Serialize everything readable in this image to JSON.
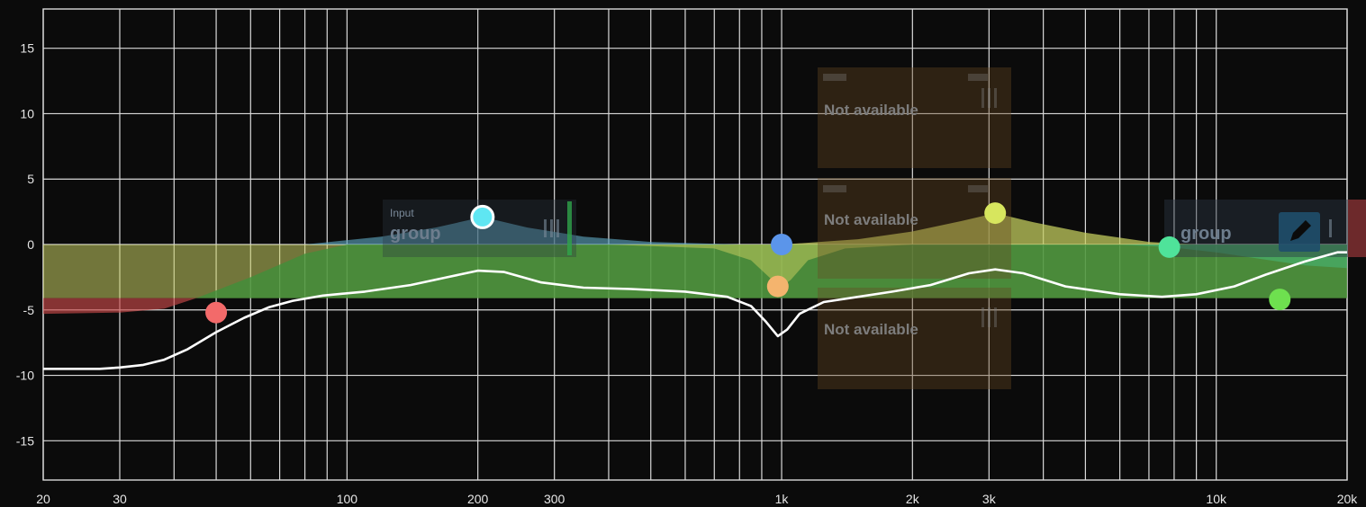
{
  "axis": {
    "y_ticks": [
      15,
      10,
      5,
      0,
      -5,
      -10,
      -15
    ],
    "y_labels": [
      "15",
      "10",
      "5",
      "0",
      "-5",
      "-10",
      "-15"
    ],
    "x_ticks": [
      20,
      30,
      100,
      200,
      300,
      1000,
      2000,
      3000,
      10000,
      20000
    ],
    "x_labels": [
      "20",
      "30",
      "100",
      "200",
      "300",
      "1k",
      "2k",
      "3k",
      "10k",
      "20k"
    ],
    "x_range": [
      20,
      20000
    ],
    "y_range": [
      -18,
      18
    ],
    "log_x": true,
    "grid": true
  },
  "input_group": {
    "small_label": "Input",
    "big_label": "group"
  },
  "output_group": {
    "big_label": "group"
  },
  "unavailable_cards": [
    {
      "label": "Not available"
    },
    {
      "label": "Not available"
    },
    {
      "label": "Not available"
    }
  ],
  "bands": [
    {
      "id": "band-1",
      "freq": 50,
      "gain": -5.2,
      "color": "#f36a6a",
      "selected": false
    },
    {
      "id": "band-2",
      "freq": 205,
      "gain": 2.1,
      "color": "#5fe6f2",
      "selected": true
    },
    {
      "id": "band-3",
      "freq": 1000,
      "gain": 0.0,
      "color": "#5b95ea",
      "selected": false
    },
    {
      "id": "band-4",
      "freq": 980,
      "gain": -3.2,
      "color": "#f4b46e",
      "selected": false
    },
    {
      "id": "band-5",
      "freq": 3100,
      "gain": 2.4,
      "color": "#d7e65e",
      "selected": false
    },
    {
      "id": "band-6",
      "freq": 7800,
      "gain": -0.2,
      "color": "#4fe39a",
      "selected": false
    },
    {
      "id": "band-7",
      "freq": 14000,
      "gain": -4.2,
      "color": "#6ee04f",
      "selected": false
    }
  ],
  "response_curve": [
    [
      20,
      -9.5
    ],
    [
      27,
      -9.5
    ],
    [
      30,
      -9.4
    ],
    [
      34,
      -9.2
    ],
    [
      38,
      -8.8
    ],
    [
      43,
      -8.0
    ],
    [
      50,
      -6.7
    ],
    [
      58,
      -5.6
    ],
    [
      66,
      -4.8
    ],
    [
      75,
      -4.3
    ],
    [
      88,
      -3.9
    ],
    [
      110,
      -3.6
    ],
    [
      140,
      -3.1
    ],
    [
      170,
      -2.5
    ],
    [
      200,
      -2.0
    ],
    [
      230,
      -2.1
    ],
    [
      280,
      -2.9
    ],
    [
      350,
      -3.3
    ],
    [
      450,
      -3.4
    ],
    [
      600,
      -3.6
    ],
    [
      750,
      -4.0
    ],
    [
      850,
      -4.7
    ],
    [
      920,
      -5.9
    ],
    [
      980,
      -7.0
    ],
    [
      1030,
      -6.5
    ],
    [
      1100,
      -5.3
    ],
    [
      1250,
      -4.4
    ],
    [
      1500,
      -4.0
    ],
    [
      1800,
      -3.6
    ],
    [
      2200,
      -3.1
    ],
    [
      2700,
      -2.2
    ],
    [
      3100,
      -1.9
    ],
    [
      3600,
      -2.2
    ],
    [
      4500,
      -3.2
    ],
    [
      6000,
      -3.8
    ],
    [
      7500,
      -4.0
    ],
    [
      9000,
      -3.8
    ],
    [
      11000,
      -3.2
    ],
    [
      13000,
      -2.3
    ],
    [
      16000,
      -1.3
    ],
    [
      19000,
      -0.6
    ],
    [
      20000,
      -0.6
    ]
  ],
  "fill_bands": [
    {
      "color": "#c8cf64",
      "opacity": 0.55,
      "points": [
        [
          20,
          -4.1
        ],
        [
          30,
          -4.1
        ],
        [
          1000,
          -4.1
        ],
        [
          3000,
          -4.1
        ],
        [
          20000,
          -4.1
        ]
      ],
      "base": 0
    },
    {
      "color": "#3f8f3a",
      "opacity": 0.78,
      "points": [
        [
          20,
          -4.1
        ],
        [
          45,
          -4.1
        ],
        [
          60,
          -2.5
        ],
        [
          80,
          -0.7
        ],
        [
          100,
          0
        ],
        [
          20000,
          0
        ]
      ],
      "base": -4.1
    },
    {
      "color": "#5aa0b8",
      "opacity": 0.65,
      "points": [
        [
          30,
          0
        ],
        [
          80,
          0
        ],
        [
          120,
          0.6
        ],
        [
          160,
          1.3
        ],
        [
          205,
          2.1
        ],
        [
          260,
          1.3
        ],
        [
          350,
          0.6
        ],
        [
          500,
          0.2
        ],
        [
          800,
          0
        ],
        [
          1000,
          0
        ]
      ],
      "base": 0
    },
    {
      "color": "#c2cb5d",
      "opacity": 0.75,
      "points": [
        [
          1000,
          0
        ],
        [
          1500,
          0.4
        ],
        [
          2000,
          1.0
        ],
        [
          2600,
          1.8
        ],
        [
          3100,
          2.4
        ],
        [
          3800,
          1.7
        ],
        [
          5000,
          0.9
        ],
        [
          7000,
          0.2
        ],
        [
          9000,
          0
        ]
      ],
      "base": 0
    },
    {
      "color": "#c2cb5d",
      "opacity": 0.55,
      "points": [
        [
          400,
          0
        ],
        [
          700,
          -0.3
        ],
        [
          850,
          -1.2
        ],
        [
          950,
          -2.7
        ],
        [
          1000,
          -3.2
        ],
        [
          1050,
          -2.7
        ],
        [
          1150,
          -1.2
        ],
        [
          1400,
          -0.3
        ],
        [
          2000,
          0
        ]
      ],
      "base": 0
    },
    {
      "color": "#c94a4a",
      "opacity": 0.65,
      "points": [
        [
          20,
          -5.3
        ],
        [
          30,
          -5.2
        ],
        [
          38,
          -4.9
        ],
        [
          45,
          -4.1
        ]
      ],
      "base": -4.1
    },
    {
      "color": "#47c48a",
      "opacity": 0.45,
      "points": [
        [
          6000,
          0
        ],
        [
          7800,
          -0.2
        ],
        [
          10000,
          -0.6
        ],
        [
          16000,
          -1.6
        ],
        [
          20000,
          -1.8
        ]
      ],
      "base": 0
    }
  ]
}
